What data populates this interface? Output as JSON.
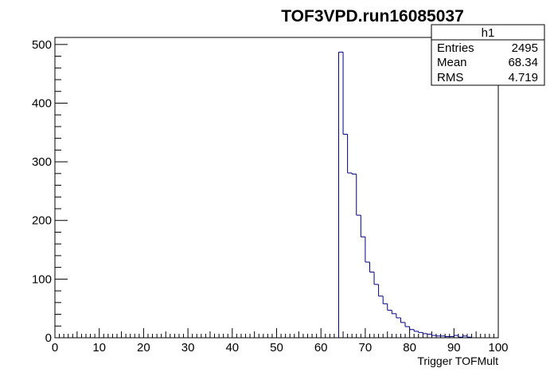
{
  "chart_data": {
    "type": "histogram",
    "title": "TOF3VPD.run16085037",
    "xlabel": "Trigger TOFMult",
    "ylabel": "",
    "xlim": [
      0,
      100
    ],
    "ylim": [
      0,
      512
    ],
    "x_ticks": [
      0,
      10,
      20,
      30,
      40,
      50,
      60,
      70,
      80,
      90,
      100
    ],
    "y_ticks": [
      0,
      100,
      200,
      300,
      400,
      500
    ],
    "bin_edges_start": 64,
    "bin_width": 1,
    "values": [
      487,
      347,
      281,
      279,
      209,
      172,
      129,
      112,
      91,
      71,
      58,
      47,
      41,
      34,
      26,
      19,
      14,
      11,
      9,
      7,
      6,
      4,
      3,
      3,
      2,
      2,
      4,
      1,
      3,
      1,
      0,
      0,
      0,
      0,
      0,
      0
    ],
    "line_color": "#000080",
    "stats": {
      "name": "h1",
      "rows": [
        {
          "label": "Entries",
          "value": "2495"
        },
        {
          "label": "Mean",
          "value": "68.34"
        },
        {
          "label": "RMS",
          "value": "4.719"
        }
      ]
    }
  }
}
